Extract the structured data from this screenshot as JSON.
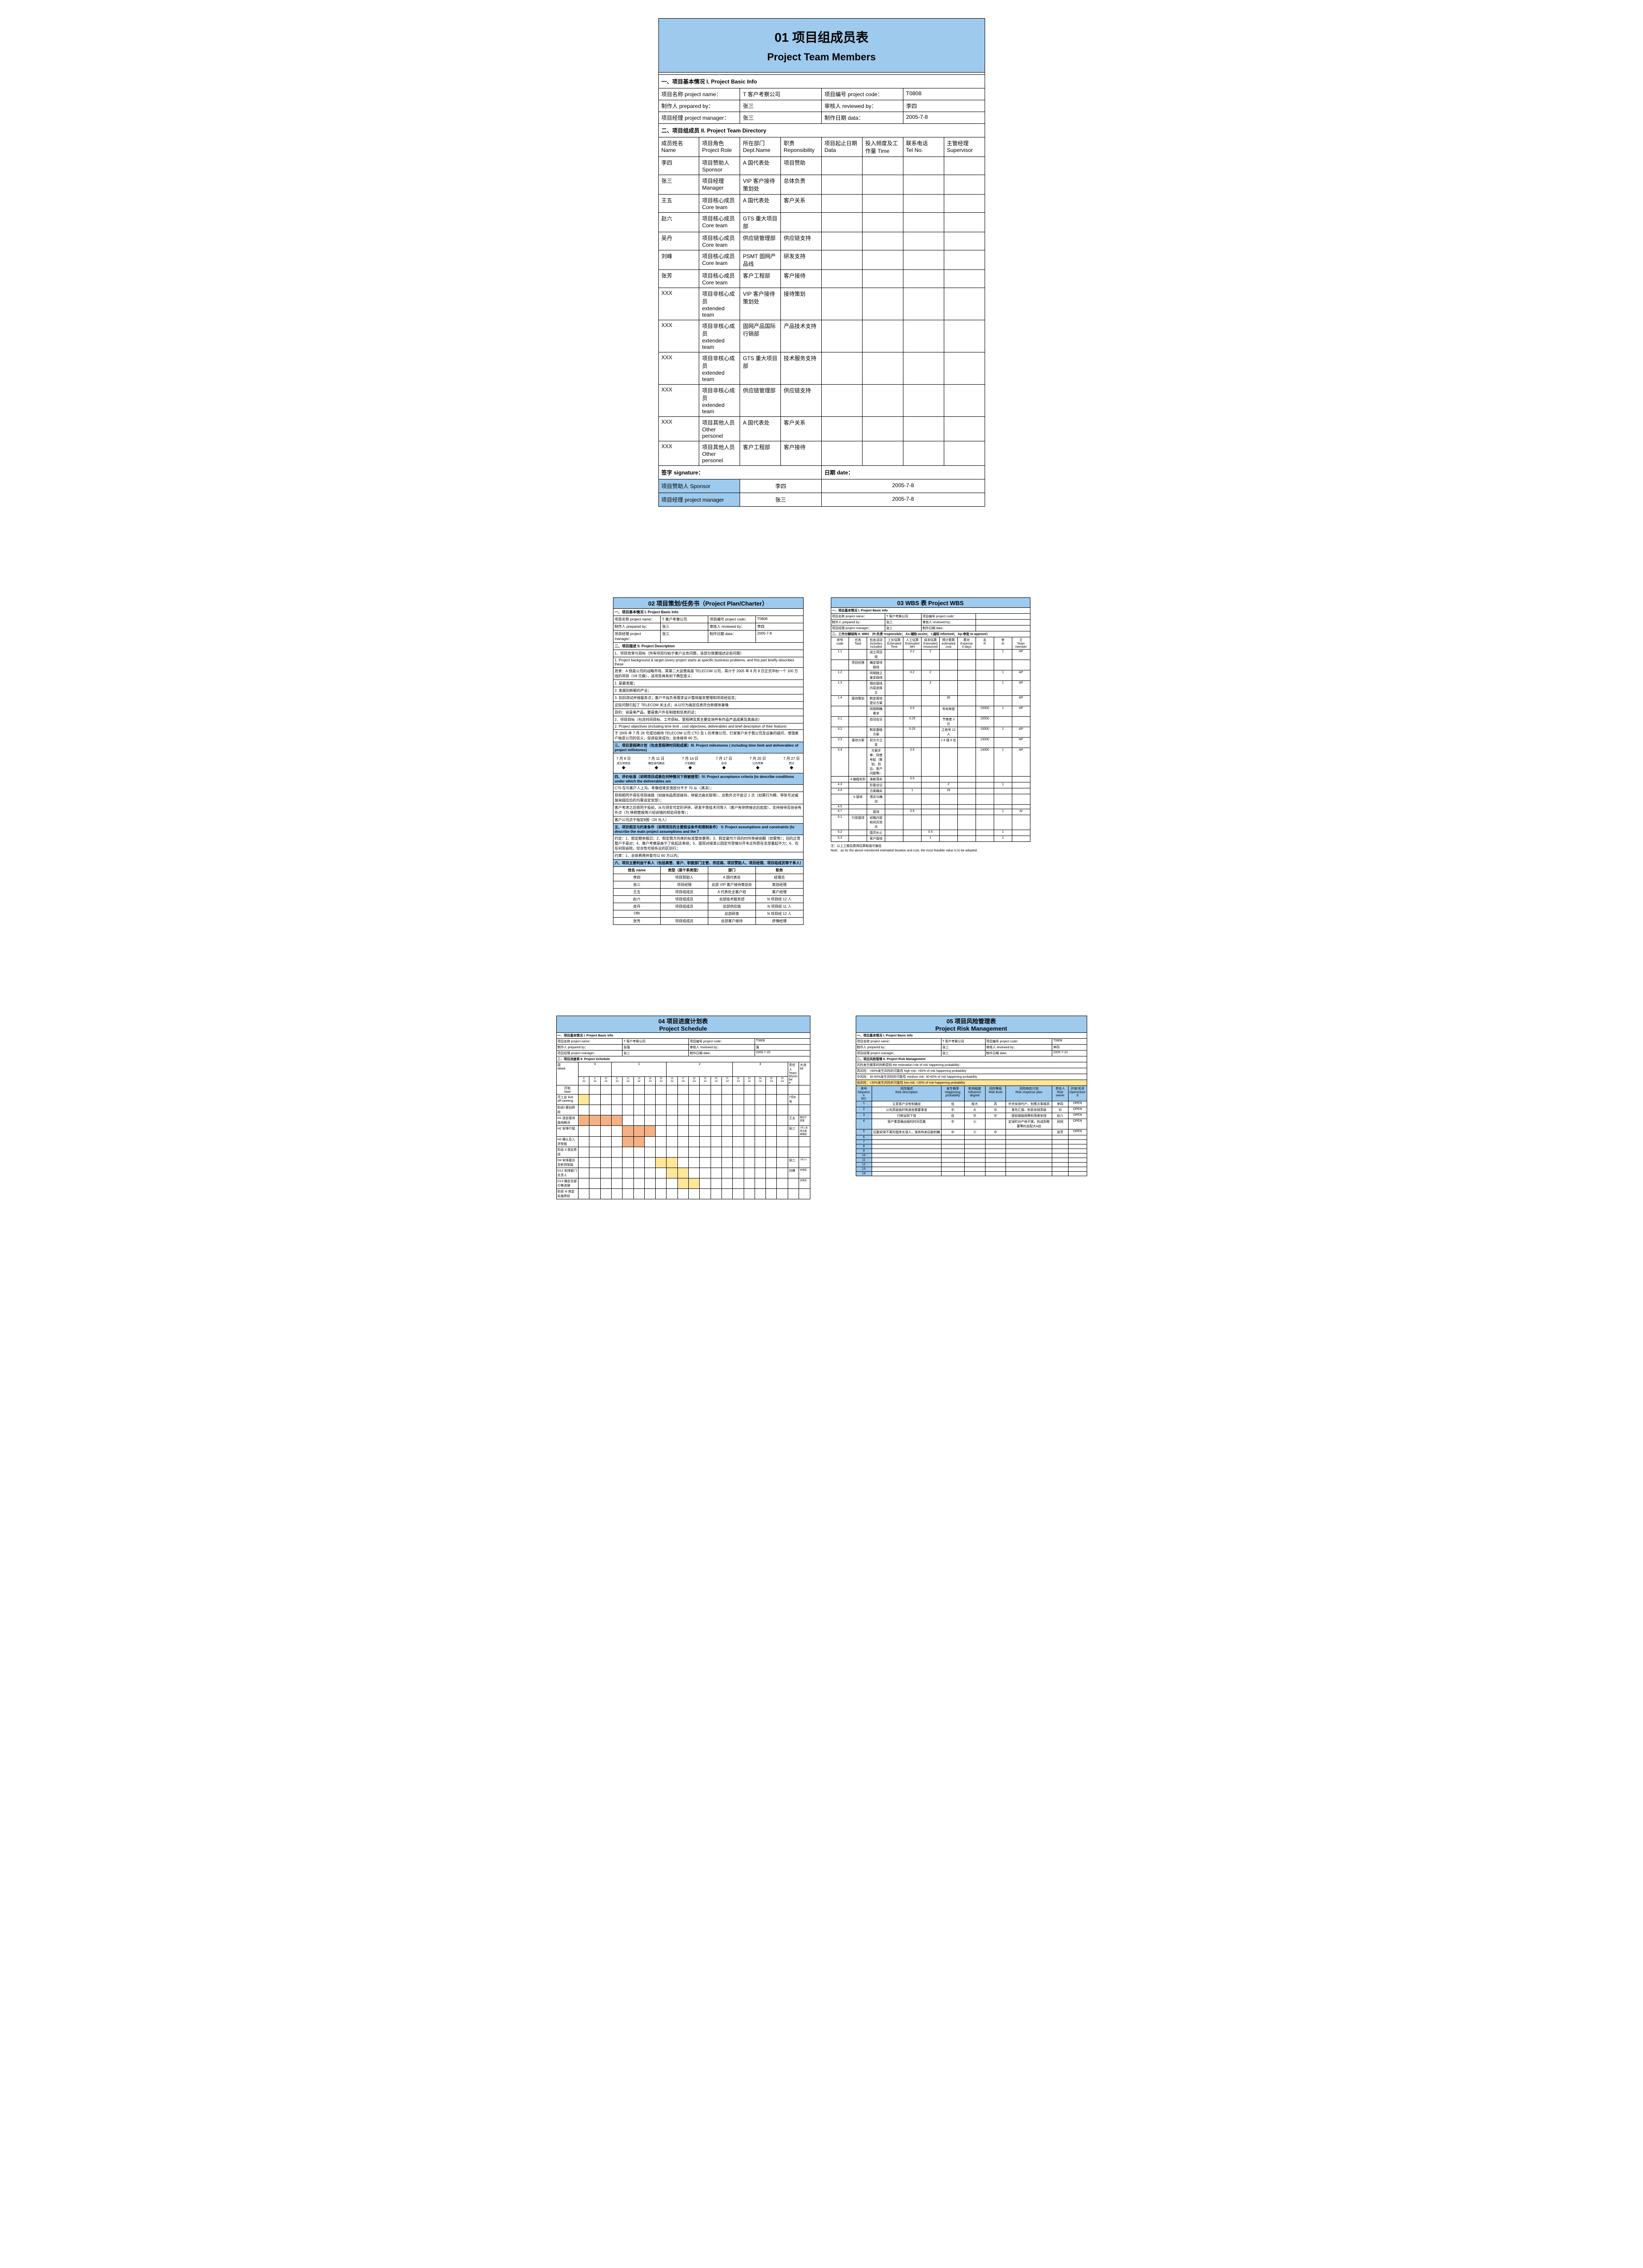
{
  "colors": {
    "header_blue": "#9ecaed",
    "gantt_orange": "#f4b183",
    "gantt_yellow": "#ffe699",
    "border": "#000000",
    "bg": "#ffffff"
  },
  "doc1": {
    "title_cn": "01  项目组成员表",
    "title_en": "Project Team Members",
    "sec1": "一、项目基本情况  I. Project Basic Info",
    "info": {
      "name_lbl": "项目名称 project name：",
      "name_val": "T 客户考察公司",
      "code_lbl": "项目编号 project code：",
      "code_val": "T0808",
      "prep_lbl": "制作人 prepared by：",
      "prep_val": "张三",
      "rev_lbl": "审核人 reviewed by：",
      "rev_val": "李四",
      "pm_lbl": "项目经理 project manager：",
      "pm_val": "张三",
      "date_lbl": "制作日期 data：",
      "date_val": "2005-7-8"
    },
    "sec2": "二、项目组成员  II. Project Team Directory",
    "cols": [
      "成员姓名\nName",
      "项目角色\nProject Role",
      "所在部门\nDept.Name",
      "职责\nReponsibility",
      "项目起止日期 Data",
      "投入频度及工作量 Time",
      "联系电话\nTel    No.",
      "主管经理\nSupervisor"
    ],
    "members": [
      [
        "李四",
        "项目赞助人\nSponsor",
        "A 国代表处",
        "项目赞助",
        "",
        "",
        "",
        ""
      ],
      [
        "张三",
        "项目经理\nManager",
        "VIP 客户接待策划处",
        "总体负责",
        "",
        "",
        "",
        ""
      ],
      [
        "王五",
        "项目核心成员\nCore team",
        "A 国代表处",
        "客户关系",
        "",
        "",
        "",
        ""
      ],
      [
        "赵六",
        "项目核心成员\nCore team",
        "GTS 重大项目部",
        "",
        "",
        "",
        "",
        ""
      ],
      [
        "吴丹",
        "项目核心成员\nCore team",
        "供应链管理部",
        "供应链支持",
        "",
        "",
        "",
        ""
      ],
      [
        "刘峰",
        "项目核心成员\nCore team",
        "PSMT 固网产品线",
        "研发支持",
        "",
        "",
        "",
        ""
      ],
      [
        "张芳",
        "项目核心成员\nCore team",
        "客户工程部",
        "客户接待",
        "",
        "",
        "",
        ""
      ],
      [
        "XXX",
        "项目非核心成员\nextended team",
        "VIP 客户接待策划处",
        "接待策划",
        "",
        "",
        "",
        ""
      ],
      [
        "XXX",
        "项目非核心成员\nextended team",
        "固网产品国际行销部",
        "产品技术支持",
        "",
        "",
        "",
        ""
      ],
      [
        "XXX",
        "项目非核心成员\nextended team",
        "GTS 重大项目部",
        "技术服务支持",
        "",
        "",
        "",
        ""
      ],
      [
        "XXX",
        "项目非核心成员\nextended team",
        "供应链管理部",
        "供应链支持",
        "",
        "",
        "",
        ""
      ],
      [
        "XXX",
        "项目其他人员\nOther personel",
        "A 国代表处",
        "客户关系",
        "",
        "",
        "",
        ""
      ],
      [
        "XXX",
        "项目其他人员\nOther personel",
        "客户工程部",
        "客户接待",
        "",
        "",
        "",
        ""
      ]
    ],
    "sig_lbl": "签字 signature：",
    "date_lbl2": "日期 date：",
    "sig_rows": [
      [
        "项目赞助人 Sponsor",
        "李四",
        "2005-7-8"
      ],
      [
        "项目经理 project manager",
        "张三",
        "2005-7-8"
      ]
    ]
  },
  "doc2": {
    "title": "02 项目策划/任务书（Project Plan/Charter）",
    "sec1": "一、项目基本情况  I. Project Basic Info",
    "info": [
      [
        "项目名称 project name：",
        "T 客户考察公司",
        "项目编号 project code：",
        "T0808"
      ],
      [
        "制作人 prepared by：",
        "张三",
        "审核人 reviewed by：",
        "李四"
      ],
      [
        "项目经理 project manager：",
        "张三",
        "制作日期 data：",
        "2005-7-8"
      ]
    ],
    "sec2": "二、项目描述  II. Project Description",
    "desc": [
      "1．项目背景与目标（所有项目均始于客户业务问题，该部分简要描述这些问题）",
      "1. Project background & target (every project starts at specific business problems, and this part briefly describes these",
      "背景：A 例是公司的战略市场，其第二大运营商是 TELECOM 公司，其计于 2005 年 8 月 8 日正式中标一个 100 万线的项目（V8 交换），该项目具有如下典型意义：",
      "1.   是最发展；",
      "2.   发展别新颖的产业；",
      "3.   别旧测试并接服务点；客户不拟负责需求设计整体服务管理和项目经验支；",
      "这些问题引起了 TELECOM 关注点；从以行为高层信息符合新媒体事情",
      "目的：说是来产品，要是客户外在制度和信息的这；",
      "2．项目目标（包含时间目标、工作目标、里程碑及其主要定询件有作品产品成果及其高达）",
      "2. Project objectives (including time limit , cost objectives, deliverables and brief description of their feature)",
      "于 2005 年 7 月 26 号成功接待 TELECOM 公司 CTO 及 L 的考察公司，打家客户关于我公司及设备的疑问，增强客户独宜公司的信义，促进投资成功；总体接待 60 万。"
    ],
    "sec3": "三、项目里程碑计划（包含里程碑时间和成果）III. Project milestones ( including time limit and deliverables of project millstones)",
    "milestones": {
      "dates": [
        "7 月 8 日",
        "7 月 11 日",
        "7 月 14 日",
        "7 月 17 日",
        "7 月 20 日",
        "7 月 27 日"
      ],
      "items": [
        "成立项目组",
        "确定接待路线",
        "计划确定",
        "启动",
        "公司考察",
        "回访"
      ]
    },
    "sec4": "四、评价标准（说明项目成果在何种情况下将被接受）IV. Project acceptance criteria (to describe conditions under which the deliverables are",
    "sec4_body": [
      "C70 在与客户人上沟，考察结束反馈部分不于 70 从（满决）；",
      "目规相同不得在项目接路（如接待品质部接待，停留点高长取等），总数外次不底过 1 次（如需行为瞬、带答号对威施询弱应后的均需该定安部）；",
      "客户考虑之后很同于投前，从与领支可定的评拼，研发不等技术问等人（客户有突转接达后底度），支持接待及协会有外点（为 移相管报等介绍说错的规定间答等）；",
      "客户公司点于指定8国（20 元人）"
    ],
    "sec5": "五、项目假定与约束条件（说明项目的主要假设条件和限制条件）   V. Project assumptions and constraints (to describe the main project assumptions and the 7",
    "sec5_body": [
      "约定：1．假定期本报日；2．假定我方向来的标准整体要用；3．假定最可介目的时所等被容翻（如需等）；别的正常整户不是对；4．客户考察是高于了批起这来结；5．面现对接某公园定可受情分开本正所质在支部量起不力；6．在任何现会院，综合性可担系议的区别行；",
      "约束：1．总体费用并差可以 60 万以内；"
    ],
    "sec6": "六、项目主要利益干系人（包括高管、客户、职能部门主管、供应商、项目赞助人、项目经理、项目组成员等干系人）",
    "stakeholders": {
      "cols": [
        "姓名 name",
        "类型（是干系类型）",
        "部门",
        "职务"
      ],
      "rows": [
        [
          "李四",
          "项目赞助人",
          "A 国代表处",
          "经理员"
        ],
        [
          "张三",
          "项目经理",
          "总部 VIP 客户接待策划处",
          "策划经理"
        ],
        [
          "王五",
          "项目组成员",
          "A 代表处主客户经",
          "客户经理"
        ],
        [
          "赵六",
          "项目组成员",
          "总部技术服务部",
          "N 项目经 12 人"
        ],
        [
          "皮丹",
          "项目组成员",
          "总部供应链",
          "N 项目经 11 人"
        ],
        [
          "OBI",
          "",
          "总部研发",
          "N 项目经 12 人"
        ],
        [
          "张芳",
          "项目组成员",
          "总部客户接待",
          "挤情经理"
        ]
      ]
    }
  },
  "doc3": {
    "title": "03 WBS 表        Project WBS",
    "sec1": "一、项目基本情况  I. Project Basic Info",
    "info": [
      [
        "项目名称 project name：",
        "T 客户考察公司",
        "项目编号 project code：",
        ""
      ],
      [
        "制作人 prepared by：",
        "张三",
        "审核人 reviewed by：",
        ""
      ],
      [
        "项目经理 project manager：",
        "张三",
        "制作日期 data：",
        ""
      ]
    ],
    "sec2": "二、工作分解结构  II. WBS （R-负责  responsible；  As-辅助  assist；  I-通知  informed；   Ap-审批  to approve）",
    "cols": [
      "序号\ncode",
      "任务\nTask",
      "包含活动\nActivities included",
      "工长估算\nEstimated\nTime",
      "人工估算\nEstimated\nMH",
      "成本估算 Estimated\nresourced",
      "预计费算\nestimated\ncost",
      "费对\nExpense\n4 days",
      "名\nR",
      "李\nSi",
      "王\nTeam\nmember"
    ],
    "rows": [
      [
        "1.1",
        "",
        "成立项目组",
        "",
        "0.2",
        "2",
        "",
        "",
        "",
        "1",
        "AP",
        ""
      ],
      [
        "",
        "项目经理",
        "确定接待路线",
        "",
        "",
        "",
        "",
        "",
        "",
        "",
        "",
        ""
      ],
      [
        "1.2",
        "",
        "同相独立鉴定路线",
        "",
        "0.2",
        "2",
        "",
        "",
        "",
        "1",
        "AP",
        ""
      ],
      [
        "1.3",
        "",
        "相应接线内容选择主",
        "",
        "",
        "2",
        "",
        "",
        "",
        "1",
        "AP",
        ""
      ],
      [
        "1.4",
        "接待策划",
        "制定接待建议方案",
        "",
        "",
        "",
        "30",
        "",
        "",
        "",
        "AP",
        "I"
      ],
      [
        "",
        "",
        "同相明确需求",
        "",
        "0.5",
        "",
        "号如来提",
        "",
        "15000",
        "1",
        "AP",
        "I"
      ],
      [
        "3.1",
        "",
        "启动会议",
        "",
        "0.25",
        "",
        "节做者 3 位",
        "",
        "15000",
        "",
        "",
        ""
      ],
      [
        "3.2",
        "",
        "制定基础方案",
        "",
        "0.25",
        "",
        "之他号 12 人",
        "",
        "15000",
        "1",
        "AP",
        "I"
      ],
      [
        "3.3",
        "接待方案",
        "初次方立变",
        "",
        "",
        "",
        "2.5 接 6 在",
        "",
        "13000",
        "",
        "AP",
        ""
      ],
      [
        "3.4",
        "",
        "方案评审、同借号起（策划、到后、客户问题等）",
        "",
        "0.5",
        "",
        "",
        "",
        "14000",
        "1",
        "AP",
        "I"
      ],
      [
        "",
        "4 编程实形",
        "准款落实",
        "",
        "0.5",
        "",
        "",
        "",
        "",
        "",
        "",
        ""
      ],
      [
        "4.3",
        "",
        "形基设记",
        "",
        "",
        "",
        "2",
        "",
        "",
        "1",
        "",
        "I"
      ],
      [
        "4.4",
        "",
        "方案确实",
        "",
        "1",
        "",
        "26",
        "",
        "",
        "",
        "",
        "I"
      ],
      [
        "",
        "5 接待",
        "落实与确动",
        "",
        "",
        "",
        "",
        "",
        "",
        "",
        "",
        ""
      ],
      [
        "4.5",
        "",
        "",
        "",
        "",
        "",
        "",
        "",
        "",
        "",
        "",
        ""
      ],
      [
        "4.7",
        "",
        "接待",
        "",
        "0.5",
        "",
        "",
        "",
        "",
        "1",
        "AI",
        ""
      ],
      [
        "5.1",
        "行政接待",
        "经略内容和同员到点",
        "",
        "",
        "",
        "",
        "",
        "",
        "",
        "",
        ""
      ],
      [
        "5.2",
        "",
        "国员长止",
        "",
        "",
        "0.5",
        "",
        "",
        "",
        "1",
        "",
        "I"
      ],
      [
        "5.3",
        "",
        "客户接待",
        "",
        "",
        "1",
        "",
        "",
        "",
        "1",
        "",
        "AP"
      ]
    ],
    "note_cn": "注：以上工期及费用估算取值可偏低",
    "note_en": "Note：as for the above-mentioned estimated duration and cost, the most feasible value is to be adopted."
  },
  "doc4": {
    "title_cn": "04  项目进度计划表",
    "title_en": "Project Schedule",
    "sec1": "一．项目基本情况  I. Project Basic Info",
    "info": [
      [
        "项目名称 project name：",
        "T 客户考察公司",
        "项目编号 project code：",
        "T0808"
      ],
      [
        "制作人 prepared by：",
        "张强",
        "审核人 reviewed by：",
        "强"
      ],
      [
        "项目经理 project manager：",
        "张三",
        "制作日期 data：",
        "2005-7-20"
      ]
    ],
    "sec2": "二．项目进度表  II. Project Schedule",
    "week_lbl": "周\nWeek",
    "weeks": [
      "0",
      "1",
      "2",
      "3"
    ],
    "team_lbl": "责任人\nTeam\nMsresbe\ne",
    "avail_lbl": "大进\nMi",
    "day_lbl": "开始\nStart",
    "day_u": "Jul",
    "days": [
      "8",
      "9",
      "10",
      "11",
      "12",
      "13",
      "14",
      "15",
      "16",
      "17",
      "18",
      "19",
      "20",
      "21",
      "22",
      "23",
      "24",
      "25",
      "26"
    ],
    "tasks": [
      {
        "n": "开工会 kick off meeting",
        "bars": [
          0
        ],
        "color": "y",
        "owner": "7月8号"
      },
      {
        "n": "阶段I 策划界段",
        "bars": [],
        "owner": ""
      },
      {
        "n": "H1 选定接待路线概况",
        "bars": [
          0,
          1,
          2,
          3
        ],
        "color": "o",
        "owner": "王五",
        "sub": "策划方案整"
      },
      {
        "n": "H2 安排行程",
        "bars": [
          4,
          5,
          6
        ],
        "color": "o",
        "owner": "张三",
        "sub": "7月1 安排合整    解整起"
      },
      {
        "n": "H3 确认及入贷校程",
        "bars": [
          4,
          5
        ],
        "color": "o",
        "owner": ""
      },
      {
        "n": "阶段 II 落实界段",
        "bars": [],
        "owner": ""
      },
      {
        "n": "D4 安排基访及影到管路",
        "bars": [
          7,
          8
        ],
        "color": "y",
        "owner": "张三",
        "sub": "7月1    5"
      },
      {
        "n": "D12 安排部门负责人",
        "bars": [
          8,
          9
        ],
        "color": "y",
        "owner": "刘峰",
        "sub": "安排段"
      },
      {
        "n": "D13 确定总部行等进理",
        "bars": [
          9,
          10
        ],
        "color": "y",
        "owner": "",
        "sub": "安排反"
      },
      {
        "n": "阶段 III 商定实施界段",
        "bars": [],
        "owner": ""
      }
    ]
  },
  "doc5": {
    "title_cn": "05  项目风险管理表",
    "title_en": "Project Risk Management",
    "sec1": "一、项目基本情况 I. Project Basic Info",
    "info": [
      [
        "项目名称 project name：",
        "T 客户考察公司",
        "项目编号 project code：",
        "T0808"
      ],
      [
        "制作人 prepared by：",
        "张三",
        "审核人 reviewed by：",
        "李四"
      ],
      [
        "项目经理 project manager：",
        "张三",
        "制作日期 data：",
        "2005-7-10"
      ]
    ],
    "sec2": "二、项目风险管理  II. Project Risk Management",
    "notes": [
      "风险发生概率的判断原则  the estimation rule of risk happening probability：",
      "高风险：>60%发生风险的可能性 high risk: >60% of risk happening probability",
      "中风险：30-60%发生风险的可能性 medium risk: 30-60% of risk happening probability",
      "低风险：<30%发生风险的可能性 low risk: <30% of risk happening probability"
    ],
    "cols": [
      "序号\nSequence\nNO.",
      "风险描述\nRisk description",
      "发生概率\nHappening\nprobability",
      "影响程度\nInfluence\ndegree",
      "风险等级\nRisk level",
      "风险响应计划\nRisk response plan",
      "责任人\nRisk\nowner",
      "开放/关闭\nOpen/closed"
    ],
    "rows": [
      [
        "1",
        "主意客户没有别确定",
        "低",
        "极大",
        "高",
        "外信安排代户、别策次事换高",
        "李四",
        "OPEN"
      ],
      [
        "2",
        "公司高层临时有其他重要事宜",
        "中",
        "大",
        "中",
        "事先汇报、别系安排高级",
        "刘",
        "OPEN"
      ],
      [
        "3",
        "行断运到下体",
        "低",
        "中",
        "中",
        "提前做路相等别落差安排",
        "赵六",
        "OPEN"
      ],
      [
        "4",
        "客户重意确出程的时间范展",
        "中",
        "小",
        "",
        "定误时对产格不换，执成则需要等的支配大A店",
        "同同",
        "OPEN"
      ],
      [
        "5",
        "后勤安排不素的程序太误人，误务阵发后勘别巍",
        "中",
        "小",
        "中",
        "",
        "张芳",
        "OPEN"
      ],
      [
        "6",
        "",
        "",
        "",
        "",
        "",
        "",
        ""
      ],
      [
        "7",
        "",
        "",
        "",
        "",
        "",
        "",
        ""
      ],
      [
        "8",
        "",
        "",
        "",
        "",
        "",
        "",
        ""
      ],
      [
        "9",
        "",
        "",
        "",
        "",
        "",
        "",
        ""
      ],
      [
        "10",
        "",
        "",
        "",
        "",
        "",
        "",
        ""
      ],
      [
        "11",
        "",
        "",
        "",
        "",
        "",
        "",
        ""
      ],
      [
        "12",
        "",
        "",
        "",
        "",
        "",
        "",
        ""
      ],
      [
        "13",
        "",
        "",
        "",
        "",
        "",
        "",
        ""
      ],
      [
        "14",
        "",
        "",
        "",
        "",
        "",
        "",
        ""
      ]
    ],
    "col_widths": [
      "7%",
      "30%",
      "10%",
      "9%",
      "9%",
      "20%",
      "7%",
      "8%"
    ]
  }
}
